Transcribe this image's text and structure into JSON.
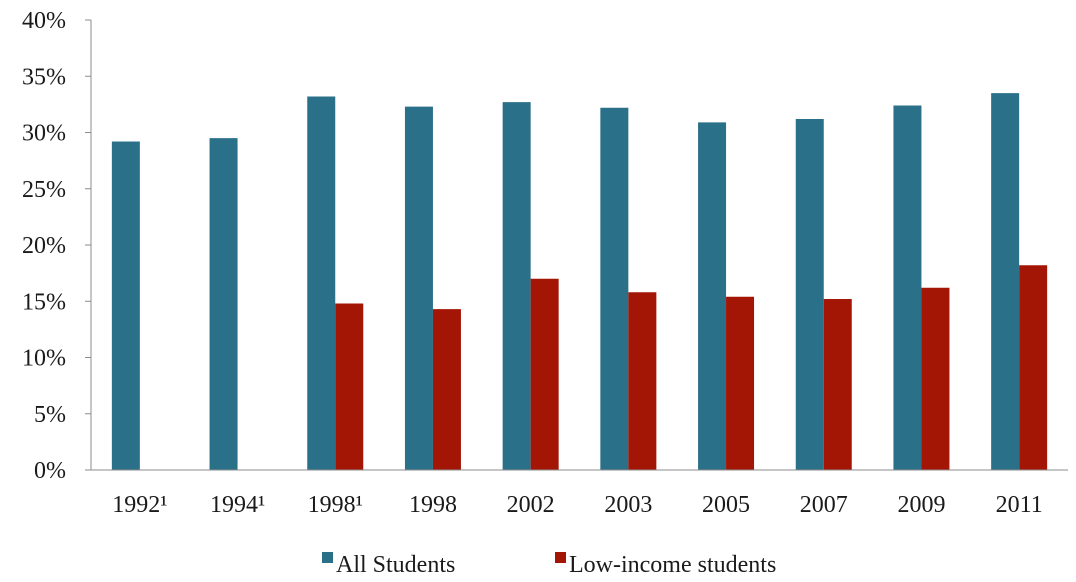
{
  "chart_data": {
    "type": "bar",
    "title": "",
    "xlabel": "",
    "ylabel": "",
    "categories": [
      "1992¹",
      "1994¹",
      "1998¹",
      "1998",
      "2002",
      "2003",
      "2005",
      "2007",
      "2009",
      "2011"
    ],
    "series": [
      {
        "name": "All Students",
        "color": "#2a7089",
        "values": [
          29.2,
          29.5,
          33.2,
          32.3,
          32.7,
          32.2,
          30.9,
          31.2,
          32.4,
          33.5
        ]
      },
      {
        "name": "Low-income students",
        "color": "#a31606",
        "values": [
          null,
          null,
          14.8,
          14.3,
          17.0,
          15.8,
          15.4,
          15.2,
          16.2,
          18.2
        ]
      }
    ],
    "ylim": [
      0,
      40
    ],
    "yticks": [
      0,
      5,
      10,
      15,
      20,
      25,
      30,
      35,
      40
    ],
    "ytick_format": "%",
    "grid": false,
    "legend": "bottom"
  }
}
